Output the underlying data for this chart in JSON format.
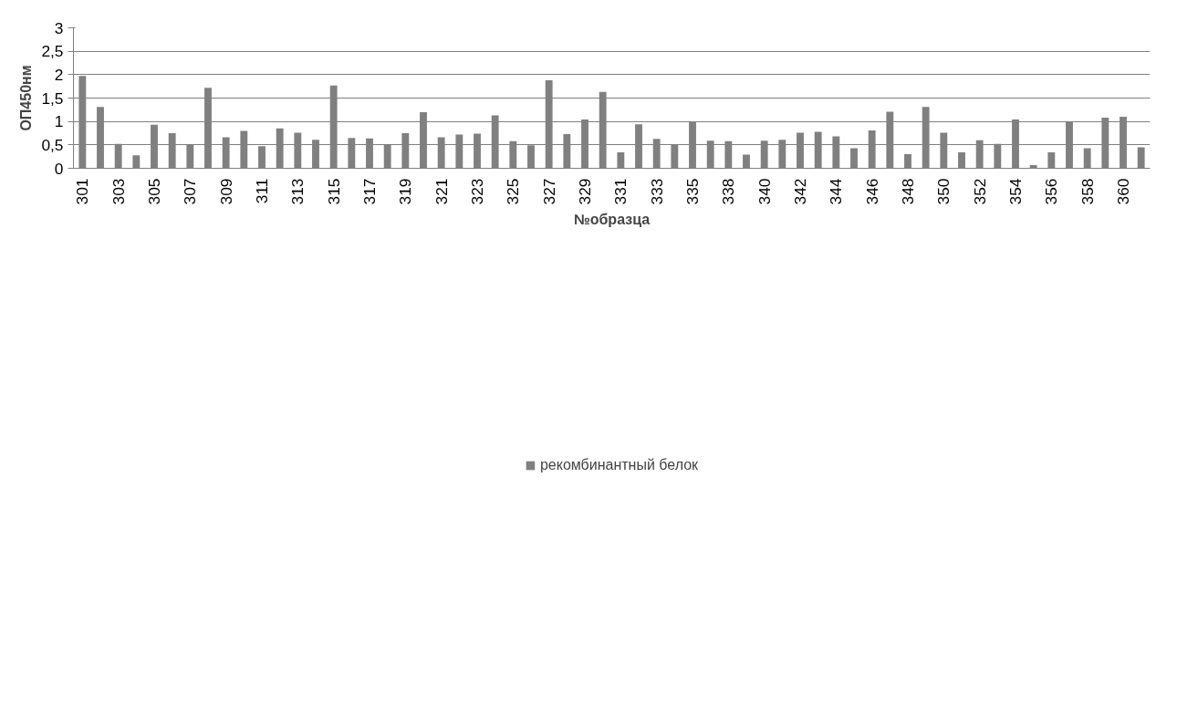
{
  "chart_data": {
    "type": "bar",
    "xlabel": "№образца",
    "ylabel": "ОП450нм",
    "categories": [
      "301",
      null,
      "303",
      null,
      "305",
      null,
      "307",
      null,
      "309",
      null,
      "311",
      null,
      "313",
      null,
      "315",
      null,
      "317",
      null,
      "319",
      null,
      "321",
      null,
      "323",
      null,
      "325",
      null,
      "327",
      null,
      "329",
      null,
      "331",
      null,
      "333",
      null,
      "335",
      null,
      "338",
      null,
      "340",
      null,
      "342",
      null,
      "344",
      null,
      "346",
      null,
      "348",
      null,
      "350",
      null,
      "352",
      null,
      "354",
      null,
      "356",
      null,
      "358",
      null,
      "360",
      null
    ],
    "series": [
      {
        "name": "рекомбинантный белок",
        "color": "#808080",
        "values": [
          1.97,
          1.31,
          0.52,
          0.28,
          0.93,
          0.75,
          0.51,
          1.72,
          0.66,
          0.8,
          0.47,
          0.85,
          0.76,
          0.61,
          1.77,
          0.65,
          0.64,
          0.5,
          0.75,
          1.2,
          0.66,
          0.72,
          0.74,
          1.13,
          0.58,
          0.49,
          1.88,
          0.73,
          1.04,
          1.63,
          0.34,
          0.94,
          0.63,
          0.5,
          1.0,
          0.59,
          0.58,
          0.29,
          0.59,
          0.61,
          0.76,
          0.78,
          0.68,
          0.43,
          0.81,
          1.21,
          0.3,
          1.31,
          0.76,
          0.34,
          0.6,
          0.52,
          1.04,
          0.07,
          0.34,
          1.0,
          0.43,
          1.08,
          1.1,
          0.45
        ]
      }
    ],
    "ylim": [
      0,
      3
    ],
    "yticks": [
      0,
      {
        "value": 0.5,
        "label": "0,5"
      },
      1,
      {
        "value": 1.5,
        "label": "1,5"
      },
      2,
      {
        "value": 2.5,
        "label": "2,5"
      },
      3
    ],
    "grid": "y",
    "legend": "bottom"
  }
}
